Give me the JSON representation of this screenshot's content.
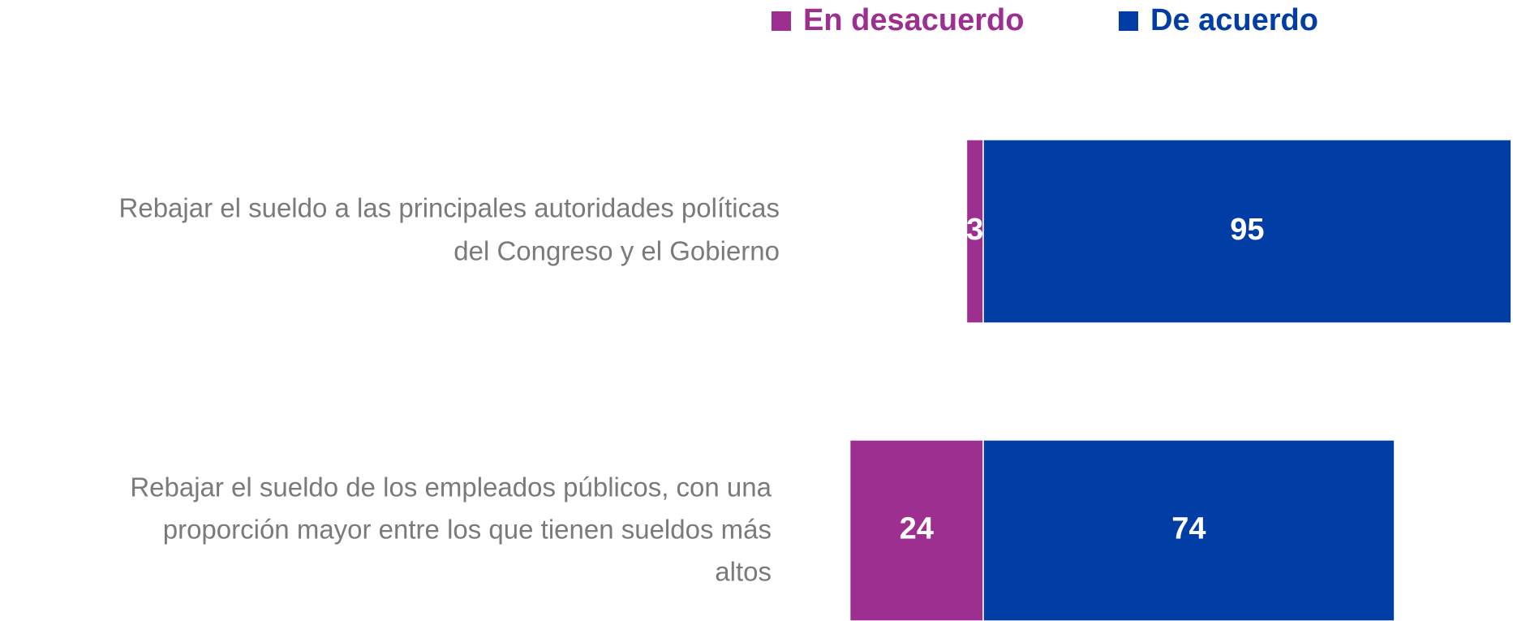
{
  "chart_data": {
    "type": "diverging-bar",
    "categories": [
      [
        "Rebajar el sueldo a las principales autoridades políticas",
        "del Congreso y el Gobierno"
      ],
      [
        "Rebajar el sueldo de los empleados públicos, con una",
        "proporción mayor entre los que tienen sueldos más",
        "altos"
      ]
    ],
    "series": [
      {
        "name": "En desacuerdo",
        "color": "#9c2f8f",
        "values": [
          3,
          24
        ]
      },
      {
        "name": "De acuerdo",
        "color": "#003da5",
        "values": [
          95,
          74
        ]
      }
    ],
    "legend": "top"
  }
}
